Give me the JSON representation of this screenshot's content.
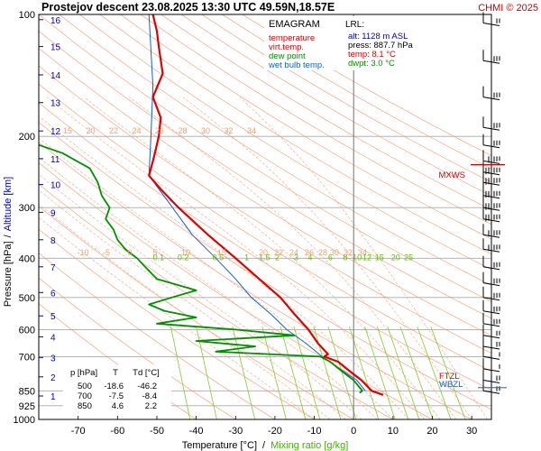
{
  "header": {
    "title": "Prostejov   descent  23.08.2025 13:30 UTC  49.59N,18.57E",
    "credit": "CHMI © 2025"
  },
  "legend": {
    "heading": "EMAGRAM",
    "items": [
      {
        "label": "temperature",
        "color": "#e00000"
      },
      {
        "label": "virt.temp.",
        "color": "#e00000"
      },
      {
        "label": "dew point",
        "color": "#009000"
      },
      {
        "label": "wet bulb temp.",
        "color": "#1060d0"
      }
    ]
  },
  "lrl": {
    "heading": "LRL:",
    "lines": [
      {
        "text": "alt: 1128 m ASL",
        "color": "#0000c0"
      },
      {
        "text": "press: 887.7 hPa",
        "color": "#000000"
      },
      {
        "text": "temp: 8.1 °C",
        "color": "#e00000"
      },
      {
        "text": "dwpt: 3.0 °C",
        "color": "#009000"
      }
    ]
  },
  "table": {
    "headers": [
      "p [hPa]",
      "T",
      "Td [°C]"
    ],
    "rows": [
      [
        "500",
        "-18.6",
        "-46.2"
      ],
      [
        "700",
        "-7.5",
        "-8.4"
      ],
      [
        "850",
        "4.6",
        "2.2"
      ]
    ]
  },
  "markers": {
    "mxws": "MXWS",
    "wbzl": "WBZL",
    "ftzl": "FTZL"
  },
  "axis_titles": {
    "x_temperature": "Temperature [°C]",
    "x_sep": "/",
    "x_mixing": "Mixing ratio [g/kg]",
    "y_pressure": "Pressure [hPa]",
    "y_sep": "/",
    "y_altitude": "Altitude [km]"
  },
  "colors": {
    "temperature": "#e00000",
    "dewpoint": "#009000",
    "wetbulb": "#1060d0",
    "mixing": "#80cc30",
    "adiabat": "#f4b090",
    "isobar": "#a8a8a8",
    "altitude_axis": "#0000c0"
  },
  "chart_data": {
    "type": "line",
    "title": "Prostejov   descent  23.08.2025 13:30 UTC  49.59N,18.57E",
    "xlabel": "Temperature [°C] / Mixing ratio [g/kg]",
    "ylabel": "Pressure [hPa] / Altitude [km]",
    "xlim": [
      -80,
      35
    ],
    "ylim": [
      1000,
      100
    ],
    "yscale": "log",
    "x_ticks": [
      -70,
      -60,
      -50,
      -40,
      -30,
      -20,
      -10,
      0,
      10,
      20,
      30
    ],
    "pressure_ticks": [
      100,
      200,
      300,
      400,
      500,
      600,
      700,
      850,
      925,
      1000
    ],
    "altitude_ticks": [
      {
        "km": 1,
        "p": 875
      },
      {
        "km": 2,
        "p": 785
      },
      {
        "km": 3,
        "p": 703
      },
      {
        "km": 4,
        "p": 625
      },
      {
        "km": 5,
        "p": 555
      },
      {
        "km": 6,
        "p": 486
      },
      {
        "km": 7,
        "p": 420
      },
      {
        "km": 8,
        "p": 360
      },
      {
        "km": 9,
        "p": 308
      },
      {
        "km": 10,
        "p": 263
      },
      {
        "km": 11,
        "p": 227
      },
      {
        "km": 12,
        "p": 194
      },
      {
        "km": 13,
        "p": 165
      },
      {
        "km": 14,
        "p": 141
      },
      {
        "km": 15,
        "p": 120
      },
      {
        "km": 16,
        "p": 103
      }
    ],
    "mixing_ratio_labels": [
      "0.1",
      "0.2",
      "0.5",
      "1",
      "1.5",
      "2",
      "3",
      "4",
      "6",
      "8",
      "10",
      "12",
      "15",
      "20",
      "25"
    ],
    "adiabat_labels_upper": [
      "15",
      "20",
      "22",
      "24",
      "26",
      "28",
      "30",
      "32",
      "34"
    ],
    "adiabat_labels_lower": [
      "-10",
      "-5",
      "0",
      "5",
      "10",
      "15",
      "20",
      "22",
      "24",
      "26",
      "28",
      "30",
      "32",
      "34"
    ],
    "series": [
      {
        "name": "temperature",
        "p": [
          870,
          850,
          800,
          760,
          720,
          700,
          690,
          650,
          600,
          550,
          500,
          450,
          400,
          350,
          300,
          270,
          250,
          240,
          230,
          220,
          200,
          180,
          160,
          140,
          120,
          110,
          100
        ],
        "values": [
          7.5,
          4.6,
          2.0,
          -1.0,
          -4.0,
          -7.5,
          -6.5,
          -9.0,
          -11.5,
          -15.0,
          -18.6,
          -24.0,
          -30.0,
          -37.0,
          -44.5,
          -49.0,
          -52.0,
          -51.5,
          -51.0,
          -50.5,
          -49.5,
          -49.0,
          -51.0,
          -48.5,
          -49.5,
          -50.0,
          -51.0
        ]
      },
      {
        "name": "dew point",
        "p": [
          860,
          850,
          800,
          760,
          720,
          700,
          680,
          660,
          640,
          620,
          600,
          580,
          560,
          540,
          520,
          500,
          480,
          450,
          420,
          400,
          380,
          360,
          340,
          320,
          300,
          280,
          260,
          240,
          220,
          210,
          200
        ],
        "values": [
          1.5,
          2.2,
          0.0,
          -3.0,
          -6.0,
          -8.4,
          -35.0,
          -25.0,
          -40.0,
          -15.0,
          -30.0,
          -50.0,
          -40.0,
          -48.0,
          -52.0,
          -46.2,
          -40.0,
          -50.0,
          -53.0,
          -55.0,
          -58.0,
          -60.0,
          -61.0,
          -63.0,
          -62.0,
          -64.0,
          -65.0,
          -67.0,
          -74.0,
          -80.0,
          -84.0
        ]
      },
      {
        "name": "wet bulb temp.",
        "p": [
          850,
          800,
          750,
          700,
          650,
          600,
          550,
          500,
          450,
          400,
          350,
          300,
          250,
          200,
          150,
          100
        ],
        "values": [
          3.0,
          0.8,
          -3.5,
          -8.0,
          -12.0,
          -17.0,
          -21.0,
          -26.0,
          -30.0,
          -35.0,
          -41.0,
          -46.0,
          -52.0,
          -51.5,
          -51.0,
          -52.0
        ]
      }
    ],
    "wind_barbs": {
      "p": [
        105,
        130,
        160,
        190,
        210,
        230,
        245,
        260,
        280,
        300,
        320,
        350,
        380,
        420,
        460,
        500,
        540,
        580,
        620,
        660,
        700,
        750,
        800,
        850
      ],
      "speed_kt": [
        20,
        25,
        30,
        35,
        40,
        50,
        70,
        75,
        65,
        60,
        55,
        50,
        45,
        40,
        40,
        35,
        30,
        25,
        20,
        15,
        10,
        10,
        15,
        20
      ]
    }
  }
}
